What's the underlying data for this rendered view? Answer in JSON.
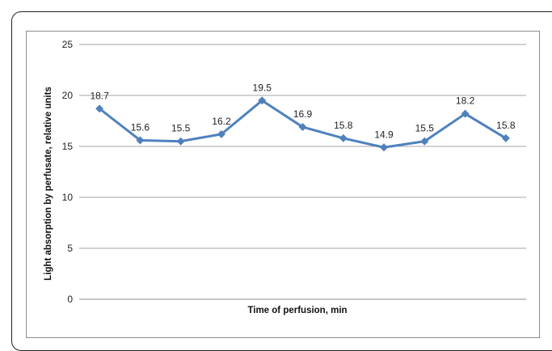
{
  "chart_data": {
    "type": "line",
    "xlabel": "Time of perfusion, min",
    "ylabel": "Light absorption by perfusate, relative units",
    "ylim": [
      0,
      25
    ],
    "yticks": [
      "0",
      "5",
      "10",
      "15",
      "20",
      "25"
    ],
    "grid": true,
    "series": [
      {
        "values": [
          18.7,
          15.6,
          15.5,
          16.2,
          19.5,
          16.9,
          15.8,
          14.9,
          15.5,
          18.2,
          15.8
        ]
      }
    ],
    "data_labels": [
      "18.7",
      "15.6",
      "15.5",
      "16.2",
      "19.5",
      "16.9",
      "15.8",
      "14.9",
      "15.5",
      "18.2",
      "15.8"
    ],
    "colors": {
      "series": "#4f81bd",
      "grid": "#a6a6a6",
      "axis": "#8c8c8c"
    }
  }
}
